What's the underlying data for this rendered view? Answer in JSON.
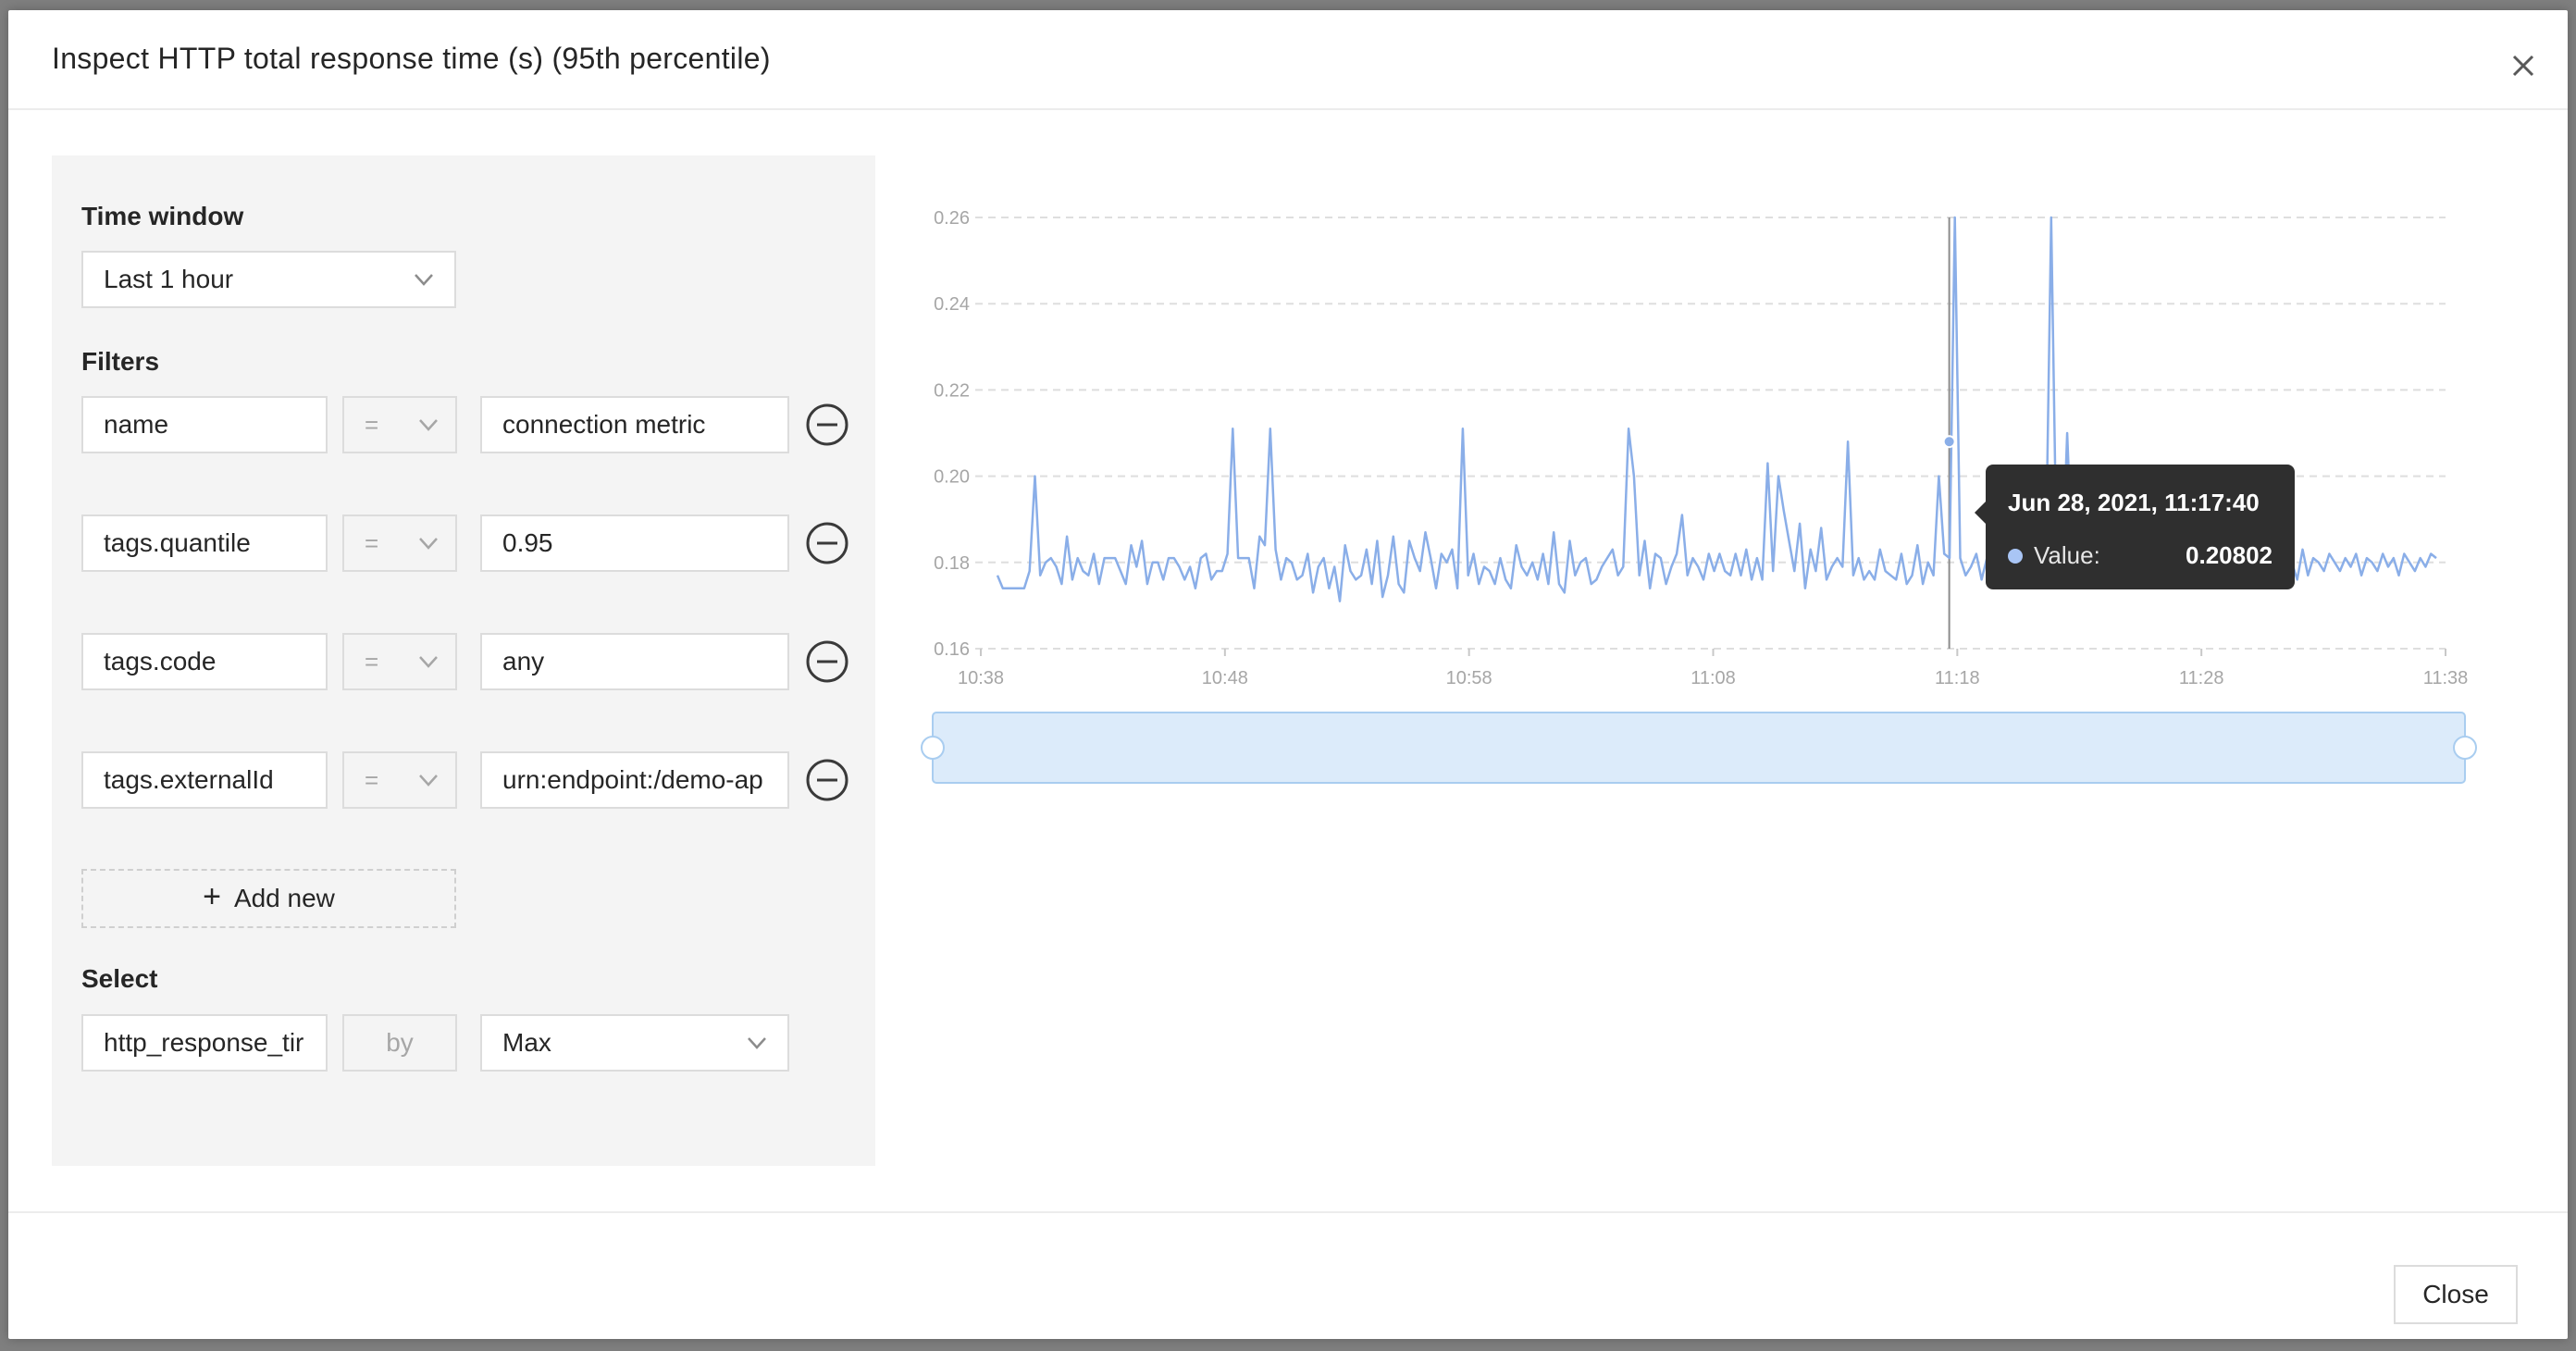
{
  "modal": {
    "title": "Inspect HTTP total response time (s) (95th percentile)"
  },
  "time_window": {
    "label": "Time window",
    "value": "Last 1 hour"
  },
  "filters": {
    "label": "Filters",
    "rows": [
      {
        "key": "name",
        "op": "=",
        "value": "connection metric"
      },
      {
        "key": "tags.quantile",
        "op": "=",
        "value": "0.95"
      },
      {
        "key": "tags.code",
        "op": "=",
        "value": "any"
      },
      {
        "key": "tags.externalId",
        "op": "=",
        "value": "urn:endpoint:/demo-ap"
      }
    ],
    "add_new_label": "Add new"
  },
  "select": {
    "label": "Select",
    "metric": "http_response_tir",
    "by_label": "by",
    "aggregation": "Max"
  },
  "tooltip": {
    "time": "Jun 28, 2021, 11:17:40",
    "label": "Value:",
    "value": "0.20802"
  },
  "footer": {
    "close_label": "Close"
  },
  "colors": {
    "line": "#8aaee8",
    "brush_fill": "#dcebfa",
    "brush_stroke": "#a9cdf0",
    "grid": "#dedede",
    "axis_text": "#a6a6a6",
    "tooltip_bg": "#2f2f2f"
  },
  "chart_data": {
    "type": "line",
    "title": "",
    "xlabel": "",
    "ylabel": "",
    "x_range_minutes": [
      0,
      60
    ],
    "ylim": [
      0.16,
      0.26
    ],
    "y_ticks": [
      "0.16",
      "0.18",
      "0.20",
      "0.22",
      "0.24",
      "0.26"
    ],
    "x_ticks": [
      "10:38",
      "10:48",
      "10:58",
      "11:08",
      "11:18",
      "11:28",
      "11:38"
    ],
    "grid": true,
    "hover_x_minute": 39.67,
    "series": [
      {
        "values": [
          0.177,
          0.174,
          0.174,
          0.174,
          0.174,
          0.174,
          0.178,
          0.2,
          0.177,
          0.18,
          0.181,
          0.179,
          0.175,
          0.186,
          0.176,
          0.181,
          0.178,
          0.177,
          0.182,
          0.175,
          0.181,
          0.181,
          0.181,
          0.178,
          0.175,
          0.184,
          0.179,
          0.185,
          0.175,
          0.18,
          0.18,
          0.176,
          0.181,
          0.181,
          0.179,
          0.176,
          0.179,
          0.174,
          0.181,
          0.182,
          0.176,
          0.178,
          0.178,
          0.182,
          0.211,
          0.181,
          0.181,
          0.181,
          0.174,
          0.186,
          0.184,
          0.211,
          0.183,
          0.176,
          0.181,
          0.18,
          0.176,
          0.177,
          0.182,
          0.173,
          0.179,
          0.181,
          0.174,
          0.179,
          0.171,
          0.184,
          0.178,
          0.176,
          0.177,
          0.183,
          0.175,
          0.185,
          0.172,
          0.177,
          0.186,
          0.175,
          0.173,
          0.185,
          0.181,
          0.178,
          0.187,
          0.181,
          0.174,
          0.182,
          0.18,
          0.183,
          0.174,
          0.211,
          0.177,
          0.182,
          0.175,
          0.179,
          0.178,
          0.175,
          0.181,
          0.176,
          0.174,
          0.184,
          0.179,
          0.177,
          0.18,
          0.176,
          0.182,
          0.175,
          0.187,
          0.175,
          0.173,
          0.185,
          0.177,
          0.18,
          0.181,
          0.175,
          0.176,
          0.179,
          0.181,
          0.183,
          0.177,
          0.179,
          0.211,
          0.2,
          0.177,
          0.185,
          0.174,
          0.182,
          0.181,
          0.175,
          0.179,
          0.182,
          0.191,
          0.177,
          0.181,
          0.179,
          0.176,
          0.182,
          0.178,
          0.182,
          0.178,
          0.177,
          0.182,
          0.177,
          0.183,
          0.176,
          0.181,
          0.176,
          0.203,
          0.178,
          0.2,
          0.192,
          0.185,
          0.178,
          0.189,
          0.174,
          0.183,
          0.178,
          0.188,
          0.176,
          0.179,
          0.181,
          0.179,
          0.208,
          0.177,
          0.181,
          0.176,
          0.178,
          0.176,
          0.183,
          0.178,
          0.177,
          0.176,
          0.182,
          0.175,
          0.177,
          0.184,
          0.175,
          0.18,
          0.177,
          0.2,
          0.182,
          0.181,
          0.26,
          0.181,
          0.177,
          0.179,
          0.182,
          0.176,
          0.181,
          0.18,
          0.183,
          0.176,
          0.182,
          0.199,
          0.177,
          0.181,
          0.177,
          0.182,
          0.178,
          0.18,
          0.26,
          0.181,
          0.176,
          0.21,
          0.178,
          0.182,
          0.176,
          0.181,
          0.181,
          0.178,
          0.177,
          0.183,
          0.176,
          0.187,
          0.178,
          0.182,
          0.178,
          0.186,
          0.18,
          0.181,
          0.179,
          0.176,
          0.182,
          0.176,
          0.183,
          0.181,
          0.18,
          0.178,
          0.181,
          0.179,
          0.176,
          0.182,
          0.178,
          0.18,
          0.181,
          0.178,
          0.184,
          0.177,
          0.18,
          0.178,
          0.182,
          0.181,
          0.178,
          0.179,
          0.182,
          0.18,
          0.176,
          0.183,
          0.177,
          0.181,
          0.18,
          0.178,
          0.182,
          0.18,
          0.178,
          0.181,
          0.179,
          0.182,
          0.177,
          0.181,
          0.18,
          0.178,
          0.182,
          0.179,
          0.181,
          0.177,
          0.182,
          0.18,
          0.178,
          0.181,
          0.179,
          0.182,
          0.181
        ]
      }
    ]
  }
}
